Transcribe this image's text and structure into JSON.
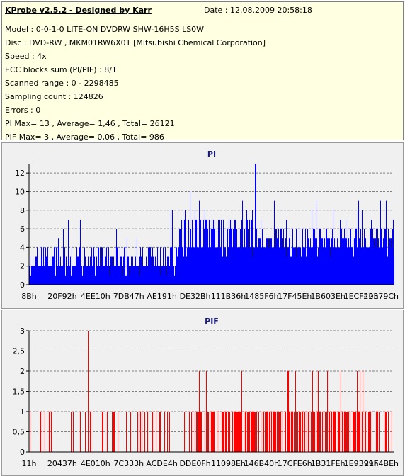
{
  "header": {
    "app_title": "KProbe v2.5.2 - Designed by Karr",
    "date": "Date : 12.08.2009 20:58:18",
    "lines": [
      "Model : 0-0-1-0 LITE-ON DVDRW SHW-16H5S  LS0W",
      "Disc : DVD-RW , MKM01RW6X01 [Mitsubishi Chemical Corporation]",
      "Speed : 4x",
      "ECC blocks sum (PI/PIF) : 8/1",
      "Scanned range : 0 - 2298485",
      "Sampling count : 124826",
      "Errors : 0",
      "PI Max= 13 , Average= 1,46 , Total= 26121",
      "PIF Max= 3 , Average= 0,06 , Total= 986"
    ]
  },
  "chart_data": [
    {
      "type": "bar",
      "title": "PI",
      "color": "#0000ff",
      "ylim": [
        0,
        13
      ],
      "yticks": [
        0,
        2,
        4,
        6,
        8,
        10,
        12
      ],
      "ytick_labels": [
        "0",
        "2",
        "4",
        "6",
        "8",
        "10",
        "12"
      ],
      "xtick_labels": [
        "8Bh",
        "20F92h",
        "4EE10h",
        "7DB47h",
        "AE191h",
        "DE32Bh",
        "111B36h",
        "1485F6h",
        "17F45Eh",
        "1B603Eh",
        "1ECF40h",
        "22379Ch"
      ],
      "grid": true,
      "segments": [
        {
          "from": 0.0,
          "to": 0.4,
          "base": 2,
          "typ_high": 4,
          "spike_max": 8
        },
        {
          "from": 0.4,
          "to": 0.62,
          "base": 4,
          "typ_high": 7,
          "spike_max": 10
        },
        {
          "from": 0.62,
          "to": 1.0,
          "base": 4,
          "typ_high": 6,
          "spike_max": 9
        }
      ],
      "max": 13,
      "max_position": 0.62,
      "average": 1.46,
      "total": 26121
    },
    {
      "type": "bar",
      "title": "PIF",
      "color": "#ff0000",
      "ylim": [
        0,
        3
      ],
      "yticks": [
        0,
        0.5,
        1,
        1.5,
        2,
        2.5,
        3
      ],
      "ytick_labels": [
        "0",
        "0,5",
        "1",
        "1,5",
        "2",
        "2,5",
        "3"
      ],
      "xtick_labels": [
        "11h",
        "20437h",
        "4E010h",
        "7C333h",
        "ACDE4h",
        "DDE0Fh",
        "11098Eh",
        "146B40h",
        "17CFE6h",
        "1B31FEh",
        "1E9399h",
        "21F4BEh"
      ],
      "grid": true,
      "density": [
        0.18,
        0.55
      ],
      "max": 3,
      "max_position": 0.16,
      "average": 0.06,
      "total": 986
    }
  ]
}
